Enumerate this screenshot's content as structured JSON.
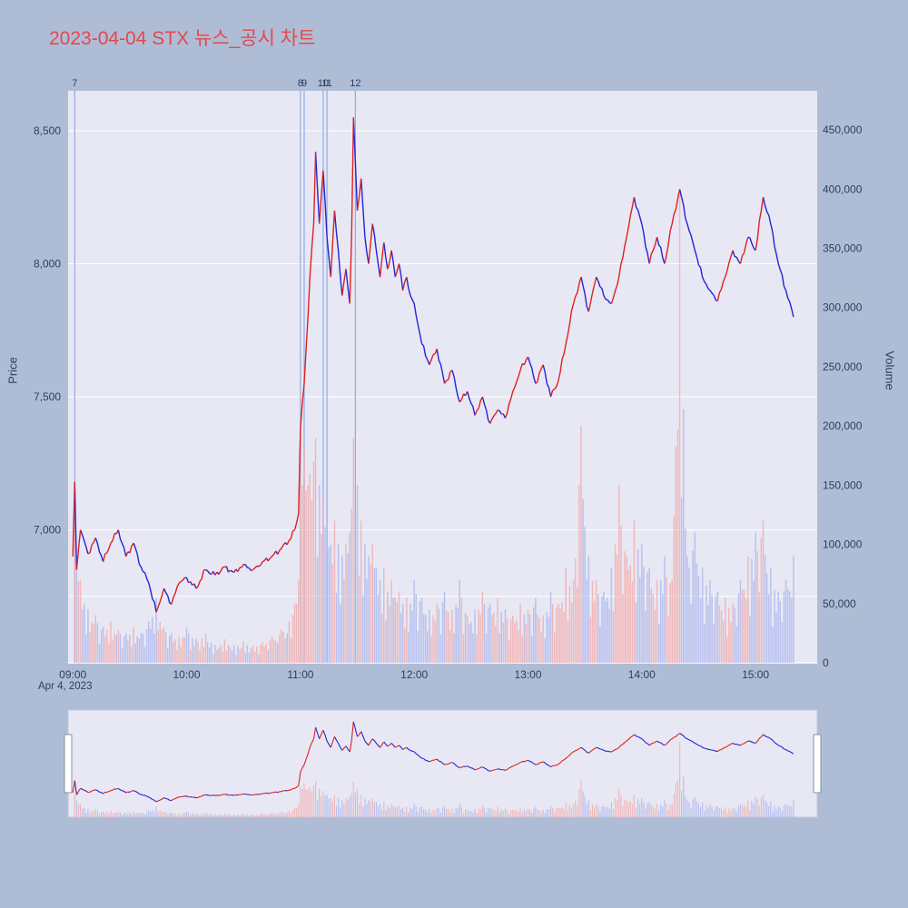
{
  "chart_data": {
    "type": "line+bar_intraday_price_volume",
    "title": "2023-04-04 STX 뉴스_공시 차트",
    "date_label": "Apr 4, 2023",
    "ylabel_left": "Price",
    "ylabel_right": "Volume",
    "x_ticks": [
      "09:00",
      "10:00",
      "11:00",
      "12:00",
      "13:00",
      "14:00",
      "15:00"
    ],
    "x_tick_minutes": [
      0,
      60,
      120,
      180,
      240,
      300,
      360
    ],
    "price_ticks": [
      7000,
      7500,
      8000,
      8500
    ],
    "price_tick_labels": [
      "7,000",
      "7,500",
      "8,000",
      "8,500"
    ],
    "volume_ticks": [
      0,
      50000,
      100000,
      150000,
      200000,
      250000,
      300000,
      350000,
      400000,
      450000
    ],
    "volume_tick_labels": [
      "0",
      "50,000",
      "100,000",
      "150,000",
      "200,000",
      "250,000",
      "300,000",
      "350,000",
      "400,000",
      "450,000"
    ],
    "price_range": [
      6500,
      8650
    ],
    "volume_axis_max": 483000,
    "x_range_minutes": [
      -2.5,
      392.5
    ],
    "grid_price": [
      6750,
      7000,
      7500,
      8000,
      8500
    ],
    "grid_on": true,
    "legend_position": "none",
    "range_slider_present": true,
    "events": [
      {
        "label": "7",
        "minute": 1,
        "time": "09:01"
      },
      {
        "label": "8",
        "minute": 120,
        "time": "11:00"
      },
      {
        "label": "9",
        "minute": 122,
        "time": "11:02"
      },
      {
        "label": "10",
        "minute": 132,
        "time": "11:12"
      },
      {
        "label": "11",
        "minute": 134,
        "time": "11:14"
      },
      {
        "label": "12",
        "minute": 149,
        "time": "11:29"
      }
    ],
    "series": {
      "time_minutes": [
        0,
        1,
        2,
        4,
        8,
        12,
        16,
        20,
        24,
        28,
        32,
        36,
        40,
        44,
        48,
        52,
        56,
        60,
        65,
        70,
        75,
        80,
        85,
        90,
        95,
        100,
        105,
        110,
        114,
        117,
        119,
        120,
        122,
        124,
        125,
        127,
        128,
        130,
        132,
        134,
        136,
        138,
        140,
        142,
        144,
        146,
        147,
        148,
        150,
        152,
        154,
        156,
        158,
        160,
        162,
        164,
        166,
        168,
        170,
        172,
        174,
        176,
        178,
        180,
        184,
        188,
        192,
        196,
        200,
        204,
        208,
        212,
        216,
        220,
        224,
        228,
        232,
        236,
        240,
        244,
        248,
        252,
        256,
        260,
        264,
        268,
        272,
        276,
        280,
        284,
        288,
        292,
        296,
        300,
        304,
        308,
        312,
        316,
        320,
        324,
        328,
        332,
        336,
        340,
        344,
        348,
        352,
        356,
        360,
        364,
        368,
        372,
        376,
        380
      ],
      "price": [
        6900,
        7180,
        6850,
        7000,
        6910,
        6970,
        6880,
        6950,
        7000,
        6900,
        6950,
        6860,
        6800,
        6690,
        6780,
        6720,
        6800,
        6820,
        6780,
        6850,
        6830,
        6860,
        6840,
        6870,
        6850,
        6880,
        6900,
        6930,
        6960,
        7000,
        7060,
        7380,
        7550,
        7800,
        7950,
        8150,
        8420,
        8150,
        8350,
        8100,
        7950,
        8200,
        8050,
        7880,
        7980,
        7850,
        8100,
        8550,
        8200,
        8320,
        8100,
        8000,
        8150,
        8050,
        7950,
        8080,
        7980,
        8050,
        7950,
        8000,
        7900,
        7950,
        7880,
        7850,
        7700,
        7620,
        7680,
        7550,
        7600,
        7480,
        7520,
        7430,
        7500,
        7400,
        7450,
        7420,
        7520,
        7600,
        7650,
        7550,
        7620,
        7500,
        7560,
        7700,
        7850,
        7950,
        7820,
        7950,
        7880,
        7850,
        7950,
        8100,
        8250,
        8150,
        8000,
        8100,
        8000,
        8150,
        8280,
        8150,
        8050,
        7950,
        7900,
        7860,
        7950,
        8050,
        8000,
        8100,
        8050,
        8250,
        8150,
        8000,
        7900,
        7800
      ],
      "volume": [
        150000,
        120000,
        90000,
        70000,
        45000,
        40000,
        30000,
        35000,
        28000,
        25000,
        30000,
        25000,
        35000,
        55000,
        30000,
        25000,
        22000,
        30000,
        20000,
        25000,
        15000,
        20000,
        15000,
        18000,
        14000,
        18000,
        22000,
        28000,
        35000,
        50000,
        70000,
        160000,
        180000,
        150000,
        160000,
        170000,
        190000,
        150000,
        140000,
        120000,
        100000,
        120000,
        100000,
        90000,
        100000,
        110000,
        130000,
        190000,
        150000,
        120000,
        100000,
        90000,
        100000,
        80000,
        70000,
        80000,
        60000,
        70000,
        55000,
        60000,
        50000,
        55000,
        50000,
        70000,
        55000,
        45000,
        50000,
        60000,
        45000,
        70000,
        40000,
        45000,
        60000,
        50000,
        55000,
        45000,
        40000,
        50000,
        45000,
        55000,
        40000,
        60000,
        50000,
        80000,
        70000,
        200000,
        90000,
        70000,
        60000,
        80000,
        150000,
        90000,
        120000,
        100000,
        80000,
        70000,
        90000,
        70000,
        400000,
        90000,
        110000,
        80000,
        70000,
        60000,
        55000,
        50000,
        70000,
        90000,
        110000,
        120000,
        80000,
        60000,
        70000,
        90000
      ]
    },
    "colors": {
      "up": "#e02020",
      "down": "#2424d6",
      "volume_up": "#f2a9a9",
      "volume_down": "#aab4ee",
      "event_line": "#93a9e8",
      "axis_text": "#2a3f5f",
      "plot_bg": "#e7e8f3",
      "page_bg": "#aebdd5",
      "title": "#e5484d",
      "grid": "#ffffff"
    }
  }
}
